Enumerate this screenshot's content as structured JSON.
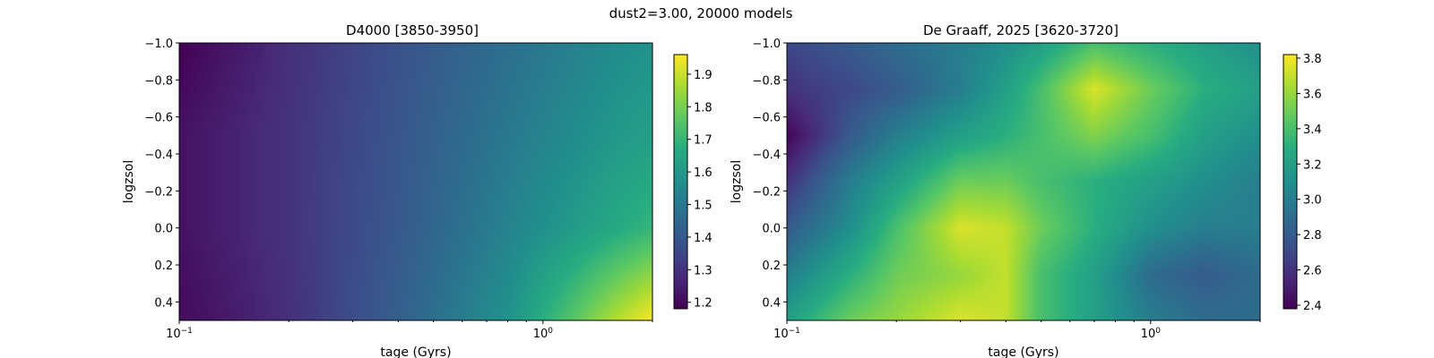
{
  "figure": {
    "suptitle": "dust2=3.00, 20000 models"
  },
  "chart_data": [
    {
      "type": "heatmap",
      "title": "D4000 [3850-3950]",
      "xlabel": "tage (Gyrs)",
      "ylabel": "logzsol",
      "xscale": "log",
      "xlim": [
        0.1,
        2.0
      ],
      "ylim": [
        0.5,
        -1.0
      ],
      "x_tick_labels": [
        {
          "base": "10",
          "exp": "−1",
          "value": 0.1
        },
        {
          "base": "10",
          "exp": "0",
          "value": 1
        }
      ],
      "y_ticks": [
        -1.0,
        -0.8,
        -0.6,
        -0.4,
        -0.2,
        0.0,
        0.2,
        0.4
      ],
      "y_tick_labels": [
        "−1.0",
        "−0.8",
        "−0.6",
        "−0.4",
        "−0.2",
        "0.0",
        "0.2",
        "0.4"
      ],
      "colormap": "viridis",
      "colorbar": {
        "range": [
          1.18,
          1.96
        ],
        "ticks": [
          1.2,
          1.3,
          1.4,
          1.5,
          1.6,
          1.7,
          1.8,
          1.9
        ],
        "tick_labels": [
          "1.2",
          "1.3",
          "1.4",
          "1.5",
          "1.6",
          "1.7",
          "1.8",
          "1.9"
        ]
      },
      "grid_tage": [
        0.1,
        0.2,
        0.4,
        0.8,
        1.6,
        2.0
      ],
      "grid_logzsol": [
        -1.0,
        -0.5,
        0.0,
        0.5
      ],
      "values": [
        [
          1.18,
          1.29,
          1.38,
          1.47,
          1.56,
          1.58
        ],
        [
          1.22,
          1.3,
          1.39,
          1.5,
          1.6,
          1.62
        ],
        [
          1.22,
          1.3,
          1.4,
          1.53,
          1.66,
          1.7
        ],
        [
          1.2,
          1.29,
          1.42,
          1.58,
          1.88,
          1.96
        ]
      ],
      "grid": false
    },
    {
      "type": "heatmap",
      "title": "De Graaff, 2025 [3620-3720]",
      "xlabel": "tage (Gyrs)",
      "ylabel": "logzsol",
      "xscale": "log",
      "xlim": [
        0.1,
        2.0
      ],
      "ylim": [
        0.5,
        -1.0
      ],
      "x_tick_labels": [
        {
          "base": "10",
          "exp": "−1",
          "value": 0.1
        },
        {
          "base": "10",
          "exp": "0",
          "value": 1
        }
      ],
      "y_ticks": [
        -1.0,
        -0.8,
        -0.6,
        -0.4,
        -0.2,
        0.0,
        0.2,
        0.4
      ],
      "y_tick_labels": [
        "−1.0",
        "−0.8",
        "−0.6",
        "−0.4",
        "−0.2",
        "0.0",
        "0.2",
        "0.4"
      ],
      "colormap": "viridis",
      "colorbar": {
        "range": [
          2.38,
          3.82
        ],
        "ticks": [
          2.4,
          2.6,
          2.8,
          3.0,
          3.2,
          3.4,
          3.6,
          3.8
        ],
        "tick_labels": [
          "2.4",
          "2.6",
          "2.8",
          "3.0",
          "3.2",
          "3.4",
          "3.6",
          "3.8"
        ]
      },
      "grid_tage": [
        0.1,
        0.15,
        0.2,
        0.3,
        0.4,
        0.5,
        0.7,
        1.0,
        1.4,
        2.0
      ],
      "grid_logzsol": [
        -1.0,
        -0.75,
        -0.5,
        -0.25,
        0.0,
        0.25,
        0.5
      ],
      "values": [
        [
          2.7,
          2.8,
          2.9,
          3.0,
          3.1,
          3.2,
          3.4,
          3.3,
          3.2,
          3.1
        ],
        [
          2.6,
          2.7,
          2.8,
          3.0,
          3.2,
          3.4,
          3.75,
          3.5,
          3.3,
          3.2
        ],
        [
          2.4,
          2.8,
          3.0,
          3.2,
          3.3,
          3.4,
          3.55,
          3.4,
          3.2,
          3.1
        ],
        [
          2.6,
          3.0,
          3.2,
          3.5,
          3.5,
          3.4,
          3.3,
          3.2,
          3.1,
          3.0
        ],
        [
          2.8,
          3.1,
          3.4,
          3.75,
          3.7,
          3.5,
          3.3,
          3.1,
          3.0,
          3.0
        ],
        [
          3.0,
          3.3,
          3.5,
          3.6,
          3.7,
          3.4,
          3.2,
          2.9,
          2.8,
          2.9
        ],
        [
          3.2,
          3.5,
          3.6,
          3.75,
          3.7,
          3.4,
          3.2,
          3.0,
          2.9,
          2.9
        ]
      ],
      "grid": false
    }
  ]
}
